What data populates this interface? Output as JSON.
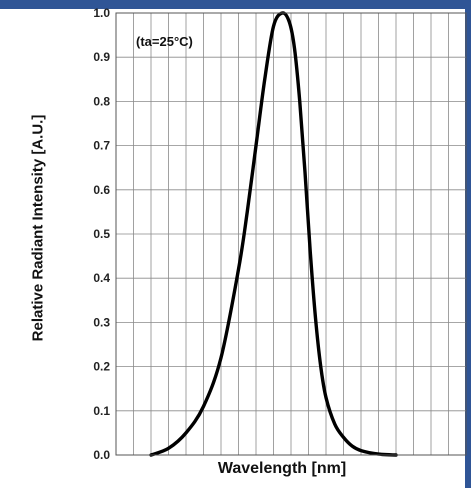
{
  "theme": {
    "band_color": "#2f5596",
    "edge_color": "#2f5596",
    "curve_color": "#000000",
    "grid_color": "#8a8a8a"
  },
  "chart_data": {
    "type": "line",
    "title": "",
    "annotation": "(ta=25°C)",
    "xlabel": "Wavelength [nm]",
    "ylabel": "Relative Radiant Intensity [A.U.]",
    "xlim": [
      0,
      20
    ],
    "ylim": [
      0,
      1
    ],
    "y_ticks": [
      "0.0",
      "0.1",
      "0.2",
      "0.3",
      "0.4",
      "0.5",
      "0.6",
      "0.7",
      "0.8",
      "0.9",
      "1.0"
    ],
    "x_tick_labels_visible": false,
    "grid": true,
    "series": [
      {
        "x": [
          2.0,
          3.0,
          4.0,
          5.0,
          6.0,
          7.0,
          7.5,
          8.0,
          8.5,
          9.0,
          9.5,
          9.9,
          10.2,
          10.5,
          10.8,
          11.1,
          11.4,
          11.7,
          12.0,
          12.5,
          13.0,
          13.5,
          14.0,
          15.0,
          16.0
        ],
        "y": [
          0.0,
          0.015,
          0.05,
          0.11,
          0.22,
          0.42,
          0.55,
          0.7,
          0.85,
          0.97,
          1.0,
          0.98,
          0.92,
          0.8,
          0.64,
          0.46,
          0.31,
          0.2,
          0.13,
          0.07,
          0.04,
          0.02,
          0.01,
          0.002,
          0.0
        ]
      }
    ]
  }
}
